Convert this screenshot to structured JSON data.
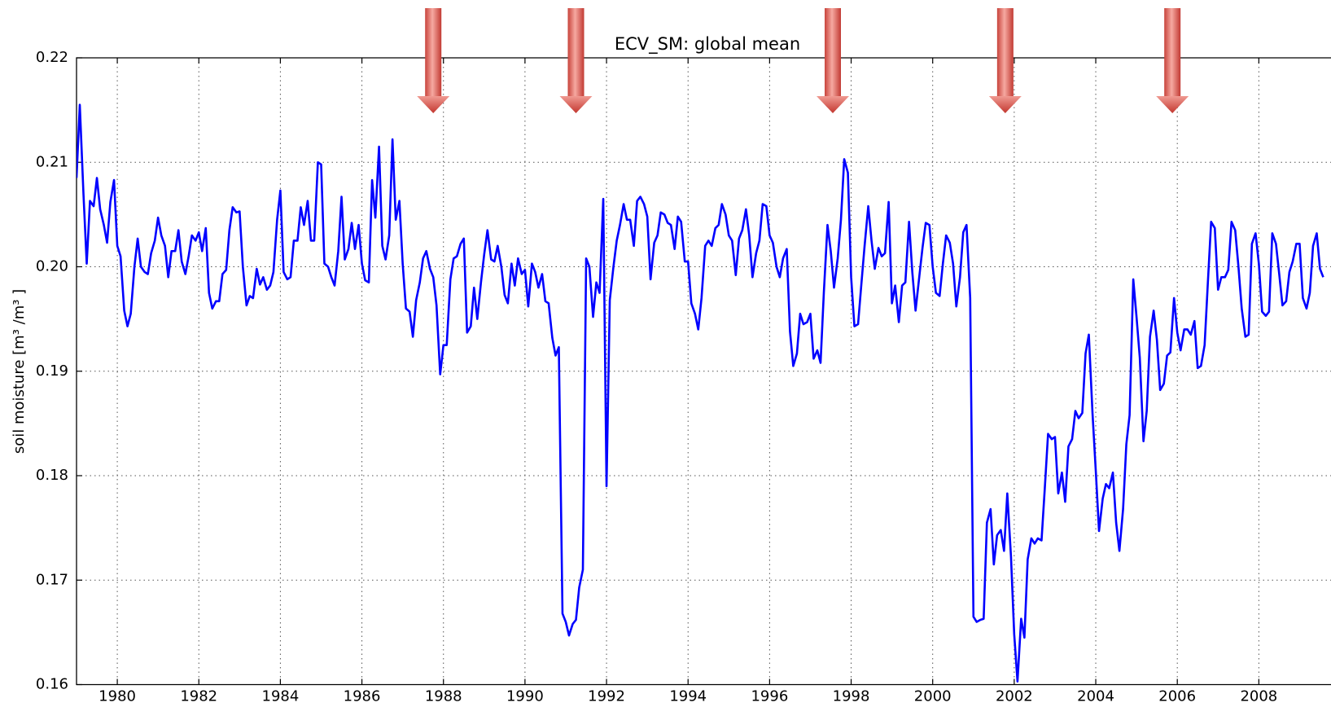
{
  "chart_data": {
    "type": "line",
    "title": "ECV_SM: global mean",
    "ylabel": "soil moisture [m³ /m³ ]",
    "xlim": [
      1979.0,
      2009.77
    ],
    "ylim": [
      0.16,
      0.22
    ],
    "xticks": [
      1980,
      1982,
      1984,
      1986,
      1988,
      1990,
      1992,
      1994,
      1996,
      1998,
      2000,
      2002,
      2004,
      2006,
      2008
    ],
    "yticks": [
      0.16,
      0.17,
      0.18,
      0.19,
      {
        "value": 0.2,
        "label": "0.20"
      },
      0.21,
      0.22
    ],
    "grid": true,
    "arrows": [
      1987.75,
      1991.25,
      1997.55,
      2001.78,
      2005.88
    ],
    "x": [
      1979.0,
      1979.08,
      1979.17,
      1979.25,
      1979.33,
      1979.42,
      1979.5,
      1979.58,
      1979.67,
      1979.75,
      1979.83,
      1979.92,
      1980.0,
      1980.08,
      1980.17,
      1980.25,
      1980.33,
      1980.42,
      1980.5,
      1980.58,
      1980.67,
      1980.75,
      1980.83,
      1980.92,
      1981.0,
      1981.08,
      1981.17,
      1981.25,
      1981.33,
      1981.42,
      1981.5,
      1981.58,
      1981.67,
      1981.75,
      1981.83,
      1981.92,
      1982.0,
      1982.08,
      1982.17,
      1982.25,
      1982.33,
      1982.42,
      1982.5,
      1982.58,
      1982.67,
      1982.75,
      1982.83,
      1982.92,
      1983.0,
      1983.08,
      1983.17,
      1983.25,
      1983.33,
      1983.42,
      1983.5,
      1983.58,
      1983.67,
      1983.75,
      1983.83,
      1983.92,
      1984.0,
      1984.08,
      1984.17,
      1984.25,
      1984.33,
      1984.42,
      1984.5,
      1984.58,
      1984.67,
      1984.75,
      1984.83,
      1984.92,
      1985.0,
      1985.08,
      1985.17,
      1985.25,
      1985.33,
      1985.42,
      1985.5,
      1985.58,
      1985.67,
      1985.75,
      1985.83,
      1985.92,
      1986.0,
      1986.08,
      1986.17,
      1986.25,
      1986.33,
      1986.42,
      1986.5,
      1986.58,
      1986.67,
      1986.75,
      1986.83,
      1986.92,
      1987.0,
      1987.08,
      1987.17,
      1987.25,
      1987.33,
      1987.42,
      1987.5,
      1987.58,
      1987.67,
      1987.75,
      1987.83,
      1987.92,
      1988.0,
      1988.08,
      1988.17,
      1988.25,
      1988.33,
      1988.42,
      1988.5,
      1988.58,
      1988.67,
      1988.75,
      1988.83,
      1988.92,
      1989.0,
      1989.08,
      1989.17,
      1989.25,
      1989.33,
      1989.42,
      1989.5,
      1989.58,
      1989.67,
      1989.75,
      1989.83,
      1989.92,
      1990.0,
      1990.08,
      1990.17,
      1990.25,
      1990.33,
      1990.42,
      1990.5,
      1990.58,
      1990.67,
      1990.75,
      1990.83,
      1990.92,
      1991.0,
      1991.08,
      1991.17,
      1991.25,
      1991.33,
      1991.42,
      1991.5,
      1991.58,
      1991.67,
      1991.75,
      1991.83,
      1991.92,
      1992.0,
      1992.08,
      1992.17,
      1992.25,
      1992.33,
      1992.42,
      1992.5,
      1992.58,
      1992.67,
      1992.75,
      1992.83,
      1992.92,
      1993.0,
      1993.08,
      1993.17,
      1993.25,
      1993.33,
      1993.42,
      1993.5,
      1993.58,
      1993.67,
      1993.75,
      1993.83,
      1993.92,
      1994.0,
      1994.08,
      1994.17,
      1994.25,
      1994.33,
      1994.42,
      1994.5,
      1994.58,
      1994.67,
      1994.75,
      1994.83,
      1994.92,
      1995.0,
      1995.08,
      1995.17,
      1995.25,
      1995.33,
      1995.42,
      1995.5,
      1995.58,
      1995.67,
      1995.75,
      1995.83,
      1995.92,
      1996.0,
      1996.08,
      1996.17,
      1996.25,
      1996.33,
      1996.42,
      1996.5,
      1996.58,
      1996.67,
      1996.75,
      1996.83,
      1996.92,
      1997.0,
      1997.08,
      1997.17,
      1997.25,
      1997.33,
      1997.42,
      1997.5,
      1997.58,
      1997.67,
      1997.75,
      1997.83,
      1997.92,
      1998.0,
      1998.08,
      1998.17,
      1998.25,
      1998.33,
      1998.42,
      1998.5,
      1998.58,
      1998.67,
      1998.75,
      1998.83,
      1998.92,
      1999.0,
      1999.08,
      1999.17,
      1999.25,
      1999.33,
      1999.42,
      1999.5,
      1999.58,
      1999.67,
      1999.75,
      1999.83,
      1999.92,
      2000.0,
      2000.08,
      2000.17,
      2000.25,
      2000.33,
      2000.42,
      2000.5,
      2000.58,
      2000.67,
      2000.75,
      2000.83,
      2000.92,
      2001.0,
      2001.08,
      2001.17,
      2001.25,
      2001.33,
      2001.42,
      2001.5,
      2001.58,
      2001.67,
      2001.75,
      2001.83,
      2001.92,
      2002.0,
      2002.08,
      2002.17,
      2002.25,
      2002.33,
      2002.42,
      2002.5,
      2002.58,
      2002.67,
      2002.75,
      2002.83,
      2002.92,
      2003.0,
      2003.08,
      2003.17,
      2003.25,
      2003.33,
      2003.42,
      2003.5,
      2003.58,
      2003.67,
      2003.75,
      2003.83,
      2003.92,
      2004.0,
      2004.08,
      2004.17,
      2004.25,
      2004.33,
      2004.42,
      2004.5,
      2004.58,
      2004.67,
      2004.75,
      2004.83,
      2004.92,
      2005.0,
      2005.08,
      2005.17,
      2005.25,
      2005.33,
      2005.42,
      2005.5,
      2005.58,
      2005.67,
      2005.75,
      2005.83,
      2005.92,
      2006.0,
      2006.08,
      2006.17,
      2006.25,
      2006.33,
      2006.42,
      2006.5,
      2006.58,
      2006.67,
      2006.75,
      2006.83,
      2006.92,
      2007.0,
      2007.08,
      2007.17,
      2007.25,
      2007.33,
      2007.42,
      2007.5,
      2007.58,
      2007.67,
      2007.75,
      2007.83,
      2007.92,
      2008.0,
      2008.08,
      2008.17,
      2008.25,
      2008.33,
      2008.42,
      2008.5,
      2008.58,
      2008.67,
      2008.75,
      2008.83,
      2008.92,
      2009.0,
      2009.08,
      2009.17,
      2009.25,
      2009.33,
      2009.42,
      2009.5,
      2009.58
    ],
    "series": [
      {
        "color": "#0000ff",
        "values": [
          0.2085,
          0.2155,
          0.207,
          0.2003,
          0.2063,
          0.2058,
          0.2085,
          0.2055,
          0.204,
          0.2023,
          0.2062,
          0.2083,
          0.202,
          0.201,
          0.1958,
          0.1943,
          0.1955,
          0.2,
          0.2027,
          0.2,
          0.1995,
          0.1993,
          0.2013,
          0.2025,
          0.2047,
          0.203,
          0.202,
          0.199,
          0.2015,
          0.2015,
          0.2035,
          0.2005,
          0.1993,
          0.201,
          0.203,
          0.2025,
          0.2033,
          0.2015,
          0.2037,
          0.1975,
          0.196,
          0.1967,
          0.1967,
          0.1993,
          0.1997,
          0.2035,
          0.2057,
          0.2052,
          0.2053,
          0.2,
          0.1963,
          0.1972,
          0.197,
          0.1998,
          0.1983,
          0.199,
          0.1978,
          0.1982,
          0.1995,
          0.2045,
          0.2073,
          0.1995,
          0.1988,
          0.199,
          0.2025,
          0.2025,
          0.2057,
          0.204,
          0.2063,
          0.2025,
          0.2025,
          0.21,
          0.2098,
          0.2003,
          0.2,
          0.199,
          0.1982,
          0.2015,
          0.2067,
          0.2007,
          0.2017,
          0.2042,
          0.2017,
          0.204,
          0.2003,
          0.1987,
          0.1985,
          0.2083,
          0.2047,
          0.2115,
          0.202,
          0.2007,
          0.203,
          0.2122,
          0.2045,
          0.2063,
          0.2003,
          0.196,
          0.1957,
          0.1933,
          0.1968,
          0.1985,
          0.2008,
          0.2015,
          0.1998,
          0.199,
          0.1963,
          0.1897,
          0.1925,
          0.1925,
          0.1988,
          0.2008,
          0.201,
          0.2022,
          0.2027,
          0.1937,
          0.1943,
          0.198,
          0.195,
          0.1985,
          0.2012,
          0.2035,
          0.2007,
          0.2005,
          0.202,
          0.2,
          0.1973,
          0.1965,
          0.2003,
          0.1982,
          0.2008,
          0.1993,
          0.1997,
          0.1962,
          0.2003,
          0.1995,
          0.198,
          0.1993,
          0.1967,
          0.1965,
          0.1932,
          0.1915,
          0.1923,
          0.1668,
          0.166,
          0.1647,
          0.1658,
          0.1662,
          0.1693,
          0.171,
          0.2008,
          0.2,
          0.1952,
          0.1985,
          0.1975,
          0.2065,
          0.179,
          0.1968,
          0.2,
          0.2025,
          0.204,
          0.206,
          0.2045,
          0.2045,
          0.202,
          0.2063,
          0.2067,
          0.206,
          0.2048,
          0.1988,
          0.2023,
          0.203,
          0.2052,
          0.205,
          0.2042,
          0.204,
          0.2017,
          0.2048,
          0.2043,
          0.2005,
          0.2005,
          0.1965,
          0.1955,
          0.194,
          0.197,
          0.202,
          0.2025,
          0.202,
          0.2037,
          0.204,
          0.206,
          0.205,
          0.203,
          0.2025,
          0.1992,
          0.2027,
          0.2035,
          0.2055,
          0.203,
          0.199,
          0.2013,
          0.2025,
          0.206,
          0.2058,
          0.203,
          0.2023,
          0.2,
          0.199,
          0.2008,
          0.2017,
          0.1938,
          0.1905,
          0.1917,
          0.1955,
          0.1945,
          0.1947,
          0.1955,
          0.1912,
          0.192,
          0.1908,
          0.1975,
          0.204,
          0.2015,
          0.198,
          0.2008,
          0.2045,
          0.2103,
          0.209,
          0.199,
          0.1943,
          0.1945,
          0.1983,
          0.202,
          0.2058,
          0.2025,
          0.1998,
          0.2018,
          0.201,
          0.2013,
          0.2062,
          0.1965,
          0.1982,
          0.1947,
          0.1982,
          0.1985,
          0.2043,
          0.1995,
          0.1958,
          0.199,
          0.2018,
          0.2042,
          0.204,
          0.2,
          0.1975,
          0.1972,
          0.2003,
          0.203,
          0.2023,
          0.2003,
          0.1962,
          0.199,
          0.2033,
          0.204,
          0.197,
          0.1665,
          0.166,
          0.1662,
          0.1663,
          0.1755,
          0.1768,
          0.1715,
          0.1743,
          0.1748,
          0.1728,
          0.1783,
          0.1723,
          0.1648,
          0.1603,
          0.1663,
          0.1645,
          0.172,
          0.174,
          0.1735,
          0.174,
          0.1738,
          0.1788,
          0.184,
          0.1835,
          0.1837,
          0.1783,
          0.1803,
          0.1775,
          0.1828,
          0.1835,
          0.1862,
          0.1855,
          0.186,
          0.1917,
          0.1935,
          0.186,
          0.1805,
          0.1747,
          0.1778,
          0.1792,
          0.1788,
          0.1803,
          0.1755,
          0.1728,
          0.1768,
          0.183,
          0.1858,
          0.1988,
          0.1952,
          0.1913,
          0.1833,
          0.1862,
          0.1933,
          0.1958,
          0.193,
          0.1882,
          0.1888,
          0.1915,
          0.1918,
          0.197,
          0.1937,
          0.192,
          0.194,
          0.194,
          0.1935,
          0.1948,
          0.1903,
          0.1905,
          0.1925,
          0.1985,
          0.2043,
          0.2037,
          0.1978,
          0.199,
          0.199,
          0.1997,
          0.2043,
          0.2035,
          0.2,
          0.196,
          0.1933,
          0.1935,
          0.2022,
          0.2032,
          0.2003,
          0.1957,
          0.1953,
          0.1957,
          0.2032,
          0.2022,
          0.1993,
          0.1963,
          0.1967,
          0.1995,
          0.2005,
          0.2022,
          0.2022,
          0.197,
          0.196,
          0.1975,
          0.202,
          0.2032,
          0.1998,
          0.199
        ]
      }
    ]
  }
}
